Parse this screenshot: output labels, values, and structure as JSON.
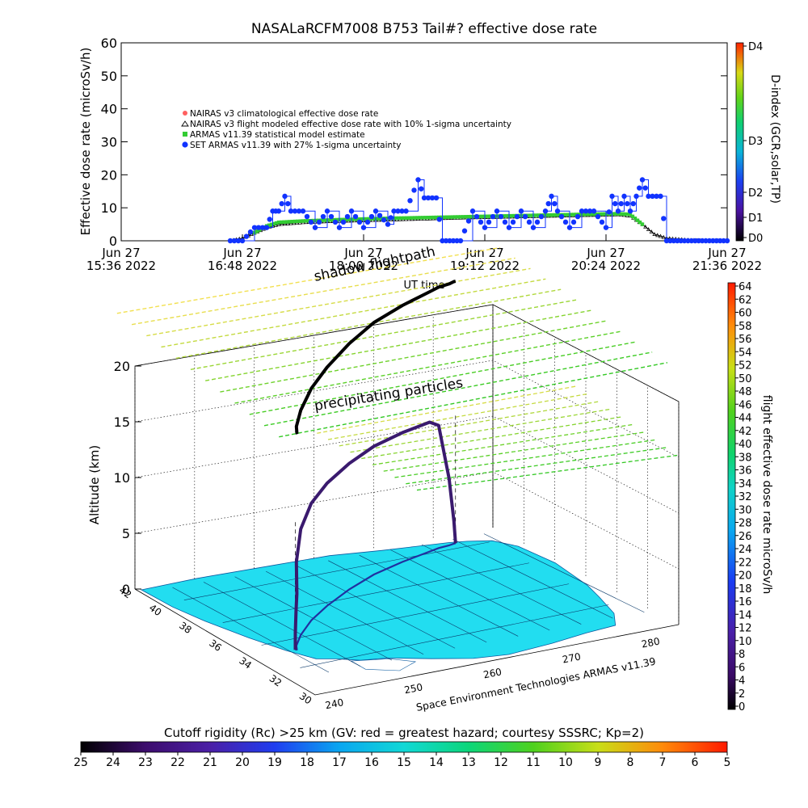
{
  "chart_data": [
    {
      "type": "scatter",
      "title": "NASALaRCFM7008  B753 Tail#? effective dose rate",
      "xlabel": "UT time",
      "ylabel": "Effective dose rate (microSv/h)",
      "ylim": [
        0,
        60
      ],
      "y_ticks": [
        "0",
        "10",
        "20",
        "30",
        "40",
        "50",
        "60"
      ],
      "x_ticks": [
        {
          "l1": "Jun 27",
          "l2": "15:36 2022"
        },
        {
          "l1": "Jun 27",
          "l2": "16:48 2022"
        },
        {
          "l1": "Jun 27",
          "l2": "18:00 2022"
        },
        {
          "l1": "Jun 27",
          "l2": "19:12 2022"
        },
        {
          "l1": "Jun 27",
          "l2": "20:24 2022"
        },
        {
          "l1": "Jun 27",
          "l2": "21:36 2022"
        }
      ],
      "legend_position": "upper-left",
      "legend": [
        "NAIRAS v3 climatological effective dose rate",
        "NAIRAS v3 flight modeled effective dose rate with 10% 1-sigma uncertainty",
        "ARMAS v11.39 statistical model estimate",
        "SET ARMAS v11.39 with 27% 1-sigma uncertainty"
      ],
      "series": [
        {
          "name": "NAIRAS v3 flight modeled effective dose rate with 10% 1-sigma uncertainty",
          "points": [
            [
              0.9,
              0
            ],
            [
              1.0,
              0.8
            ],
            [
              1.1,
              2.4
            ],
            [
              1.2,
              4
            ],
            [
              1.3,
              5
            ],
            [
              1.5,
              5.6
            ],
            [
              1.7,
              5.9
            ],
            [
              2.0,
              6.2
            ],
            [
              2.4,
              6.6
            ],
            [
              2.8,
              7
            ],
            [
              3.2,
              7.3
            ],
            [
              3.6,
              7.6
            ],
            [
              4.0,
              7.9
            ],
            [
              4.1,
              8
            ],
            [
              4.2,
              7.6
            ],
            [
              4.3,
              5
            ],
            [
              4.4,
              2
            ],
            [
              4.5,
              0.8
            ],
            [
              4.7,
              0.2
            ],
            [
              5.0,
              0
            ]
          ]
        },
        {
          "name": "ARMAS v11.39 statistical model estimate",
          "points": [
            [
              1.1,
              2.5
            ],
            [
              1.2,
              4.5
            ],
            [
              1.3,
              5.6
            ],
            [
              1.5,
              6
            ],
            [
              1.8,
              6.4
            ],
            [
              2.2,
              6.8
            ],
            [
              2.6,
              7.1
            ],
            [
              3.0,
              7.4
            ],
            [
              3.4,
              7.7
            ],
            [
              3.8,
              8
            ],
            [
              4.1,
              8.2
            ],
            [
              4.2,
              8
            ],
            [
              4.3,
              5
            ]
          ]
        },
        {
          "name": "SET ARMAS v11.39 with 27% 1-sigma uncertainty",
          "points": [
            [
              0.9,
              0
            ],
            [
              1.0,
              0
            ],
            [
              1.1,
              4
            ],
            [
              1.2,
              4
            ],
            [
              1.25,
              9
            ],
            [
              1.3,
              9
            ],
            [
              1.35,
              13.5
            ],
            [
              1.4,
              9
            ],
            [
              1.5,
              9
            ],
            [
              1.6,
              4
            ],
            [
              1.7,
              9
            ],
            [
              1.8,
              4
            ],
            [
              1.9,
              9
            ],
            [
              2.0,
              4
            ],
            [
              2.1,
              9
            ],
            [
              2.2,
              5
            ],
            [
              2.25,
              9
            ],
            [
              2.35,
              9
            ],
            [
              2.45,
              18.5
            ],
            [
              2.5,
              13
            ],
            [
              2.6,
              13
            ],
            [
              2.65,
              0
            ],
            [
              2.8,
              0
            ],
            [
              2.9,
              9
            ],
            [
              3.0,
              4
            ],
            [
              3.1,
              9
            ],
            [
              3.2,
              4
            ],
            [
              3.3,
              9
            ],
            [
              3.4,
              4
            ],
            [
              3.5,
              9
            ],
            [
              3.55,
              13.5
            ],
            [
              3.6,
              9
            ],
            [
              3.7,
              4
            ],
            [
              3.8,
              9
            ],
            [
              3.9,
              9
            ],
            [
              4.0,
              4
            ],
            [
              4.05,
              13.5
            ],
            [
              4.1,
              9
            ],
            [
              4.15,
              13.5
            ],
            [
              4.2,
              9
            ],
            [
              4.25,
              13.5
            ],
            [
              4.3,
              18.5
            ],
            [
              4.35,
              13.5
            ],
            [
              4.45,
              13.5
            ],
            [
              4.5,
              0
            ],
            [
              5.0,
              0
            ]
          ]
        }
      ]
    },
    {
      "type": "scatter",
      "ylabel": "Altitude (km)",
      "y_ticks": [
        "0",
        "5",
        "10",
        "15",
        "20"
      ],
      "lat_ticks": [
        "42",
        "40",
        "38",
        "36",
        "34",
        "32",
        "30"
      ],
      "lon_ticks": [
        "240",
        "250",
        "260",
        "270",
        "280"
      ],
      "label_shadow": "shadow flightpath",
      "label_particles": "precipitating particles",
      "credit": "Space Environment Technologies ARMAS v11.39",
      "flight_path": [
        {
          "lon": 242.5,
          "lat": 33.9,
          "alt": 0.0
        },
        {
          "lon": 242.5,
          "lat": 33.9,
          "alt": 1.5
        },
        {
          "lon": 242.6,
          "lat": 33.9,
          "alt": 3.5
        },
        {
          "lon": 242.7,
          "lat": 33.9,
          "alt": 5.0
        },
        {
          "lon": 243.3,
          "lat": 34.3,
          "alt": 7.5
        },
        {
          "lon": 245.5,
          "lat": 35.3,
          "alt": 9.5
        },
        {
          "lon": 249.0,
          "lat": 36.6,
          "alt": 10.5
        },
        {
          "lon": 253.0,
          "lat": 37.8,
          "alt": 11.0
        },
        {
          "lon": 258.0,
          "lat": 39.1,
          "alt": 11.3
        },
        {
          "lon": 263.0,
          "lat": 40.2,
          "alt": 11.5
        },
        {
          "lon": 268.0,
          "lat": 41.0,
          "alt": 11.6
        },
        {
          "lon": 272.5,
          "lat": 41.6,
          "alt": 11.6
        },
        {
          "lon": 274.0,
          "lat": 41.8,
          "alt": 11.0
        },
        {
          "lon": 275.5,
          "lat": 41.9,
          "alt": 6.0
        },
        {
          "lon": 276.3,
          "lat": 42.0,
          "alt": 2.0
        },
        {
          "lon": 276.5,
          "lat": 42.0,
          "alt": 0.0
        }
      ]
    },
    {
      "type": "heatmap",
      "title": "Cutoff rigidity (Rc) >25 km (GV: red = greatest hazard; courtesy SSSRC; Kp=2)",
      "ticks": [
        "25",
        "24",
        "23",
        "22",
        "21",
        "20",
        "19",
        "18",
        "17",
        "16",
        "15",
        "14",
        "13",
        "12",
        "11",
        "10",
        "9",
        "8",
        "7",
        "6",
        "5"
      ]
    },
    {
      "type": "heatmap",
      "title": "flight effective dose rate microSv/h",
      "ticks": [
        "0",
        "2",
        "4",
        "6",
        "8",
        "10",
        "12",
        "14",
        "16",
        "18",
        "20",
        "22",
        "24",
        "26",
        "28",
        "30",
        "32",
        "34",
        "36",
        "38",
        "40",
        "42",
        "44",
        "46",
        "48",
        "50",
        "52",
        "54",
        "56",
        "58",
        "60",
        "62",
        "64"
      ]
    },
    {
      "type": "heatmap",
      "title": "D-index (GCR,solar,TP)",
      "ticks": [
        "D0",
        "D1",
        "D2",
        "D3",
        "D4"
      ]
    }
  ],
  "colors": {
    "nairas_clim": "#ff6060",
    "nairas_flight": "#000000",
    "armas_model": "#33cc33",
    "set_armas": "#1133ff",
    "map_fill": "#22ddf0",
    "flight_line": "#3a1a6e",
    "shadow_line": "#000000"
  }
}
